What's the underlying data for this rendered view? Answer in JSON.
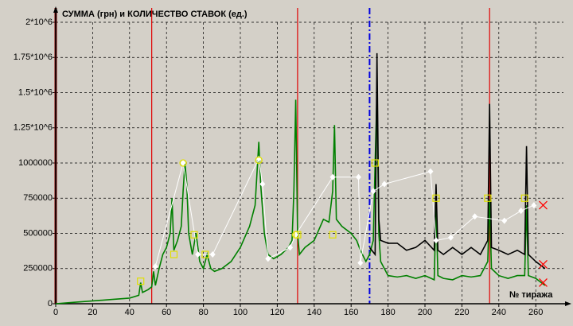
{
  "chart_data": {
    "type": "line",
    "title": "СУММА (грн) и КОЛИЧЕСТВО СТАВОК (ед.)",
    "x_label": "№ тиража",
    "xlim": [
      0,
      275
    ],
    "ylim": [
      0,
      2000000
    ],
    "xticks": [
      0,
      20,
      40,
      60,
      80,
      100,
      120,
      140,
      160,
      180,
      200,
      220,
      240,
      260
    ],
    "yticks": [
      0,
      250000,
      500000,
      750000,
      1000000,
      {
        "value": 1250000,
        "label": "1.25*10^6"
      },
      {
        "value": 1500000,
        "label": "1.5*10^6"
      },
      {
        "value": 1750000,
        "label": "1.75*10^6"
      },
      {
        "value": 2000000,
        "label": "2*10^6"
      }
    ],
    "grid": true,
    "background": "#d4d0c8",
    "vlines": [
      {
        "x": 0,
        "color": "#800000",
        "style": "solid"
      },
      {
        "x": 52,
        "color": "#e00000",
        "style": "solid"
      },
      {
        "x": 131,
        "color": "#e00000",
        "style": "solid"
      },
      {
        "x": 235,
        "color": "#e00000",
        "style": "solid"
      },
      {
        "x": 170,
        "color": "#0000e0",
        "style": "dashdot"
      }
    ],
    "series": [
      {
        "color": "#008000",
        "style": "line",
        "x": [
          0,
          10,
          20,
          30,
          40,
          45,
          46,
          47,
          50,
          52,
          53,
          54,
          56,
          58,
          60,
          62,
          63,
          64,
          66,
          68,
          69,
          70,
          71,
          72,
          74,
          76,
          78,
          80,
          82,
          84,
          86,
          90,
          95,
          100,
          105,
          108,
          110,
          111,
          113,
          115,
          118,
          122,
          126,
          128,
          129,
          130,
          131,
          132,
          135,
          140,
          145,
          148,
          150,
          151,
          152,
          155,
          160,
          163,
          165,
          168,
          170,
          172,
          173,
          174,
          175,
          176,
          178,
          180,
          185,
          190,
          195,
          200,
          205,
          206,
          207,
          210,
          215,
          220,
          225,
          230,
          234,
          235,
          236,
          240,
          245,
          250,
          254,
          255,
          256,
          260,
          265
        ],
        "values": [
          0,
          10000,
          20000,
          30000,
          40000,
          60000,
          150000,
          80000,
          100000,
          120000,
          230000,
          130000,
          250000,
          350000,
          400000,
          500000,
          750000,
          380000,
          450000,
          550000,
          800000,
          1000000,
          850000,
          500000,
          350000,
          500000,
          300000,
          250000,
          350000,
          250000,
          230000,
          250000,
          300000,
          400000,
          550000,
          700000,
          1150000,
          850000,
          500000,
          350000,
          320000,
          350000,
          400000,
          450000,
          800000,
          1450000,
          500000,
          350000,
          400000,
          450000,
          600000,
          580000,
          800000,
          1270000,
          600000,
          550000,
          500000,
          450000,
          380000,
          300000,
          350000,
          450000,
          1000000,
          1500000,
          500000,
          300000,
          250000,
          200000,
          190000,
          200000,
          180000,
          200000,
          170000,
          700000,
          200000,
          180000,
          170000,
          200000,
          190000,
          200000,
          300000,
          740000,
          250000,
          200000,
          180000,
          200000,
          200000,
          700000,
          200000,
          180000,
          130000
        ]
      },
      {
        "color": "#000000",
        "style": "line",
        "x": [
          170,
          173,
          174,
          175,
          176,
          180,
          185,
          190,
          195,
          200,
          205,
          206,
          207,
          210,
          215,
          220,
          225,
          230,
          234,
          235,
          236,
          240,
          245,
          250,
          254,
          255,
          256,
          260,
          265
        ],
        "values": [
          400000,
          350000,
          1780000,
          600000,
          450000,
          430000,
          430000,
          380000,
          400000,
          450000,
          380000,
          850000,
          380000,
          350000,
          400000,
          350000,
          400000,
          350000,
          450000,
          1420000,
          400000,
          380000,
          350000,
          380000,
          350000,
          1120000,
          350000,
          300000,
          250000
        ]
      },
      {
        "color": "#ffffff",
        "style": "line-diamond",
        "x": [
          54,
          69,
          77,
          85,
          110,
          112,
          115,
          127,
          130,
          150,
          164,
          165,
          172,
          178,
          203,
          206,
          214,
          227,
          243,
          252,
          259
        ],
        "values": [
          265000,
          1000000,
          350000,
          350000,
          1030000,
          850000,
          320000,
          400000,
          490000,
          900000,
          900000,
          290000,
          800000,
          850000,
          940000,
          450000,
          470000,
          620000,
          590000,
          660000,
          700000
        ]
      },
      {
        "color": "#e0e000",
        "style": "square",
        "x": [
          46,
          64,
          75,
          81,
          131,
          150,
          173,
          206,
          234,
          254
        ],
        "values": [
          160000,
          350000,
          490000,
          350000,
          490000,
          490000,
          1000000,
          750000,
          750000,
          750000
        ]
      },
      {
        "color": "#e0e000",
        "style": "circle",
        "x": [
          69,
          110,
          130
        ],
        "values": [
          1000000,
          1020000,
          490000
        ]
      },
      {
        "color": "#ff0000",
        "style": "cross",
        "x": [
          264,
          264,
          264
        ],
        "values": [
          700000,
          280000,
          150000
        ]
      }
    ]
  }
}
